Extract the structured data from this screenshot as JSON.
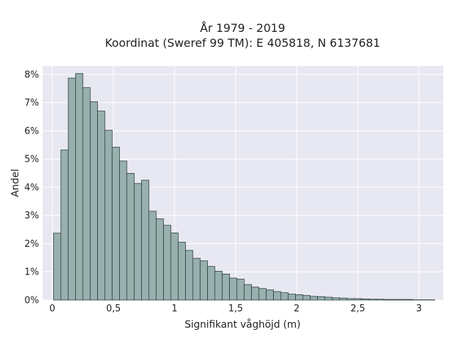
{
  "colors": {
    "plot_background": "#e8e8f2",
    "grid": "#ffffff",
    "bar_fill": "#98b0ae",
    "bar_edge": "#2e3d3c"
  },
  "chart_data": {
    "type": "bar",
    "title": "År 1979 - 2019",
    "subtitle": "Koordinat (Sweref 99 TM): E 405818, N 6137681",
    "xlabel": "Signifikant våghöjd (m)",
    "ylabel": "Andel",
    "xlim": [
      -0.08,
      3.2
    ],
    "ylim": [
      0,
      8.3
    ],
    "grid": true,
    "x_ticks": [
      {
        "value": 0,
        "label": "0"
      },
      {
        "value": 0.5,
        "label": "0,5"
      },
      {
        "value": 1,
        "label": "1"
      },
      {
        "value": 1.5,
        "label": "1,5"
      },
      {
        "value": 2,
        "label": "2"
      },
      {
        "value": 2.5,
        "label": "2,5"
      },
      {
        "value": 3,
        "label": "3"
      }
    ],
    "y_ticks": [
      {
        "value": 0,
        "label": "0%"
      },
      {
        "value": 1,
        "label": "1%"
      },
      {
        "value": 2,
        "label": "2%"
      },
      {
        "value": 3,
        "label": "3%"
      },
      {
        "value": 4,
        "label": "4%"
      },
      {
        "value": 5,
        "label": "5%"
      },
      {
        "value": 6,
        "label": "6%"
      },
      {
        "value": 7,
        "label": "7%"
      },
      {
        "value": 8,
        "label": "8%"
      }
    ],
    "bins": {
      "start": 0.01,
      "width": 0.06,
      "values": [
        2.37,
        5.32,
        7.87,
        8.03,
        7.53,
        7.03,
        6.7,
        6.02,
        5.42,
        4.93,
        4.49,
        4.13,
        4.25,
        3.15,
        2.88,
        2.65,
        2.38,
        2.05,
        1.76,
        1.48,
        1.39,
        1.19,
        1.02,
        0.92,
        0.78,
        0.74,
        0.55,
        0.46,
        0.41,
        0.36,
        0.3,
        0.26,
        0.21,
        0.19,
        0.16,
        0.13,
        0.12,
        0.1,
        0.08,
        0.07,
        0.05,
        0.05,
        0.04,
        0.03,
        0.03,
        0.02,
        0.02,
        0.02,
        0.02,
        0.01,
        0.01,
        0.01
      ]
    }
  }
}
